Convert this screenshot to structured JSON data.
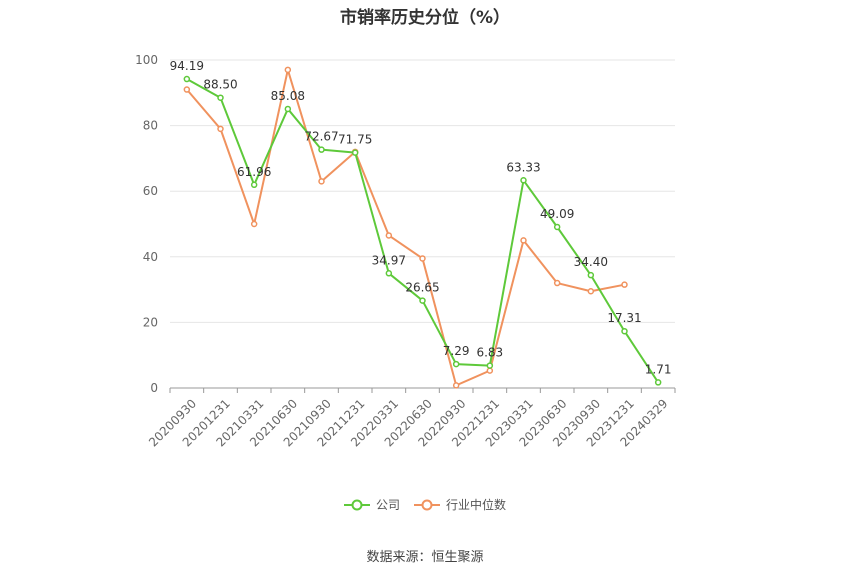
{
  "chart_data": {
    "type": "line",
    "title": "市销率历史分位（%）",
    "categories": [
      "20200930",
      "20201231",
      "20210331",
      "20210630",
      "20210930",
      "20211231",
      "20220331",
      "20220630",
      "20220930",
      "20221231",
      "20230331",
      "20230630",
      "20230930",
      "20231231",
      "20240329"
    ],
    "series": [
      {
        "name": "公司",
        "color": "#5ec93a",
        "values": [
          94.19,
          88.5,
          61.96,
          85.08,
          72.67,
          71.75,
          34.97,
          26.65,
          7.29,
          6.83,
          63.33,
          49.09,
          34.4,
          17.31,
          1.71
        ],
        "labels": [
          "94.19",
          "88.50",
          "61.96",
          "85.08",
          "72.67",
          "71.75",
          "34.97",
          "26.65",
          "7.29",
          "6.83",
          "63.33",
          "49.09",
          "34.40",
          "17.31",
          "1.71"
        ]
      },
      {
        "name": "行业中位数",
        "color": "#f0925e",
        "values": [
          91,
          79,
          50,
          97,
          63,
          72,
          46.5,
          39.5,
          0.8,
          5.3,
          45,
          32,
          29.5,
          31.5,
          null
        ]
      }
    ],
    "yticks": [
      "0",
      "20",
      "40",
      "60",
      "80",
      "100"
    ],
    "ylim": [
      0,
      100
    ],
    "grid": true,
    "legend_position": "bottom-center"
  },
  "source": "数据来源：恒生聚源"
}
